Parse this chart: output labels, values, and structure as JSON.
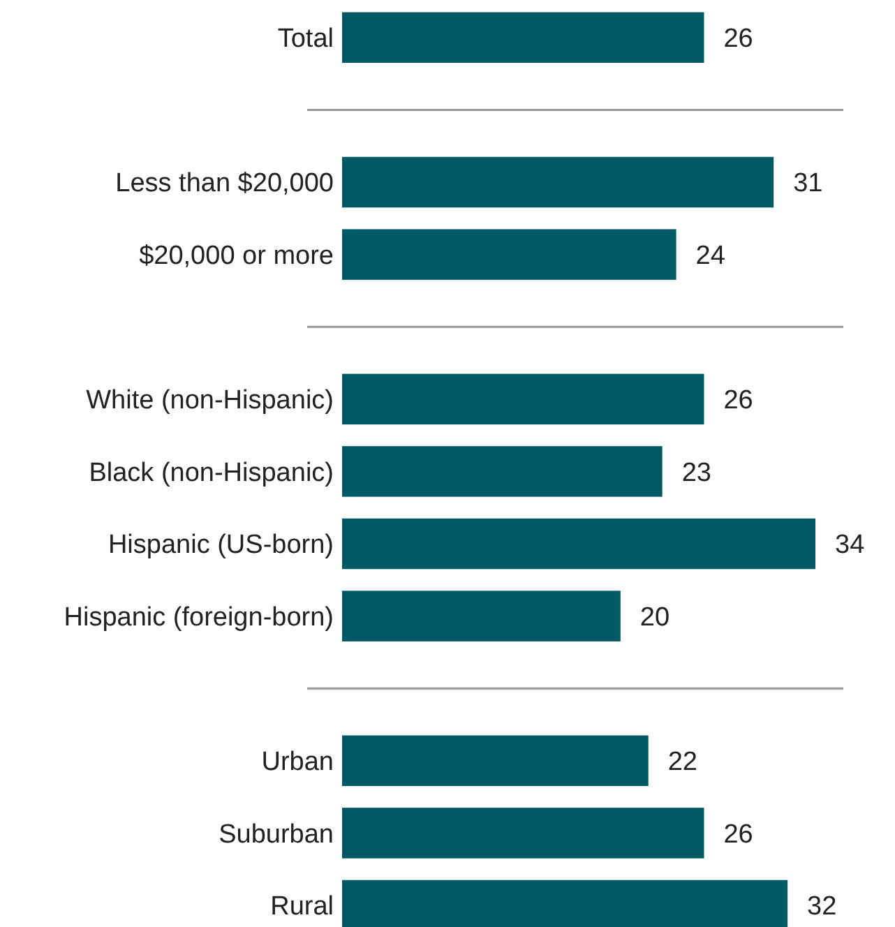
{
  "chart_data": {
    "type": "bar",
    "orientation": "horizontal",
    "data_labels": true,
    "color": "#005a66",
    "categories": [
      "Total",
      null,
      "Less than $20,000",
      "$20,000 or more",
      null,
      "White (non-Hispanic)",
      "Black (non-Hispanic)",
      "Hispanic (US-born)",
      "Hispanic (foreign-born)",
      null,
      "Urban",
      "Suburban",
      "Rural"
    ],
    "values": [
      26,
      null,
      31,
      24,
      null,
      26,
      23,
      34,
      20,
      null,
      22,
      26,
      32
    ]
  }
}
